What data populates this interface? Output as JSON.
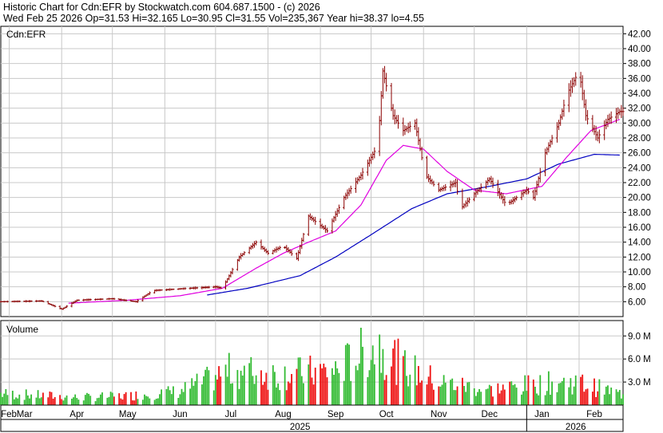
{
  "header": {
    "line1": "Historic Chart for Cdn:EFR by Stockwatch.com 604.687.1500 - (c) 2026",
    "line2": "Wed Feb 25 2026   Op=31.53   Hi=32.165   Lo=30.95   Cl=31.55   Vol=235,367   Year hi=38.37   lo=4.55"
  },
  "chart_data": [
    {
      "type": "ohlc",
      "title": "Cdn:EFR",
      "ylim": [
        4,
        43
      ],
      "y_ticks": [
        "6.00",
        "8.00",
        "10.00",
        "12.00",
        "14.00",
        "16.00",
        "18.00",
        "20.00",
        "22.00",
        "24.00",
        "26.00",
        "28.00",
        "30.00",
        "32.00",
        "34.00",
        "36.00",
        "38.00",
        "40.00",
        "42.00"
      ],
      "x_labels": [
        {
          "label": "Feb",
          "date": "2025-02-25"
        },
        {
          "label": "Mar",
          "date": "2025-03-10"
        },
        {
          "label": "Apr",
          "date": "2025-04-10"
        },
        {
          "label": "May",
          "date": "2025-05-10"
        },
        {
          "label": "Jun",
          "date": "2025-06-10"
        },
        {
          "label": "Jul",
          "date": "2025-07-10"
        },
        {
          "label": "Aug",
          "date": "2025-08-10"
        },
        {
          "label": "Sep",
          "date": "2025-09-10"
        },
        {
          "label": "Oct",
          "date": "2025-10-10"
        },
        {
          "label": "Nov",
          "date": "2025-11-10"
        },
        {
          "label": "Dec",
          "date": "2025-12-10"
        },
        {
          "label": "Jan",
          "date": "2026-01-10"
        },
        {
          "label": "Feb",
          "date": "2026-02-10"
        }
      ],
      "year_labels": [
        {
          "label": "2025",
          "date": "2025-08-20"
        },
        {
          "label": "2026",
          "date": "2026-01-30"
        }
      ],
      "year_divider_date": "2026-01-01",
      "x_range": [
        "2025-02-24",
        "2026-02-27"
      ],
      "price_path": [
        {
          "date": "2025-02-24",
          "close": 6.0
        },
        {
          "date": "2025-03-20",
          "close": 6.1
        },
        {
          "date": "2025-04-01",
          "close": 5.0
        },
        {
          "date": "2025-04-10",
          "close": 6.2
        },
        {
          "date": "2025-05-01",
          "close": 6.4
        },
        {
          "date": "2025-05-15",
          "close": 6.0
        },
        {
          "date": "2025-05-25",
          "close": 7.5
        },
        {
          "date": "2025-06-15",
          "close": 7.8
        },
        {
          "date": "2025-07-01",
          "close": 8.0
        },
        {
          "date": "2025-07-05",
          "close": 7.8
        },
        {
          "date": "2025-07-15",
          "close": 12.0
        },
        {
          "date": "2025-07-25",
          "close": 14.0
        },
        {
          "date": "2025-08-01",
          "close": 12.5
        },
        {
          "date": "2025-08-10",
          "close": 13.5
        },
        {
          "date": "2025-08-18",
          "close": 11.8
        },
        {
          "date": "2025-08-25",
          "close": 17.5
        },
        {
          "date": "2025-09-05",
          "close": 15.5
        },
        {
          "date": "2025-09-15",
          "close": 20.0
        },
        {
          "date": "2025-09-25",
          "close": 23.0
        },
        {
          "date": "2025-10-05",
          "close": 27.0
        },
        {
          "date": "2025-10-08",
          "close": 37.0
        },
        {
          "date": "2025-10-14",
          "close": 31.0
        },
        {
          "date": "2025-10-20",
          "close": 29.0
        },
        {
          "date": "2025-10-27",
          "close": 30.0
        },
        {
          "date": "2025-11-02",
          "close": 23.0
        },
        {
          "date": "2025-11-10",
          "close": 21.0
        },
        {
          "date": "2025-11-20",
          "close": 22.0
        },
        {
          "date": "2025-11-23",
          "close": 18.5
        },
        {
          "date": "2025-12-01",
          "close": 20.5
        },
        {
          "date": "2025-12-10",
          "close": 22.5
        },
        {
          "date": "2025-12-20",
          "close": 19.0
        },
        {
          "date": "2026-01-01",
          "close": 21.0
        },
        {
          "date": "2026-01-05",
          "close": 20.0
        },
        {
          "date": "2026-01-12",
          "close": 26.0
        },
        {
          "date": "2026-01-20",
          "close": 30.0
        },
        {
          "date": "2026-01-25",
          "close": 34.0
        },
        {
          "date": "2026-02-01",
          "close": 37.0
        },
        {
          "date": "2026-02-05",
          "close": 31.0
        },
        {
          "date": "2026-02-12",
          "close": 28.0
        },
        {
          "date": "2026-02-18",
          "close": 30.5
        },
        {
          "date": "2026-02-25",
          "close": 31.55
        }
      ],
      "ma_fast_path": [
        {
          "date": "2025-04-05",
          "value": 5.8
        },
        {
          "date": "2025-05-10",
          "value": 6.2
        },
        {
          "date": "2025-06-10",
          "value": 6.8
        },
        {
          "date": "2025-07-05",
          "value": 7.8
        },
        {
          "date": "2025-07-25",
          "value": 10.5
        },
        {
          "date": "2025-08-10",
          "value": 12.5
        },
        {
          "date": "2025-08-25",
          "value": 14.0
        },
        {
          "date": "2025-09-10",
          "value": 15.5
        },
        {
          "date": "2025-09-25",
          "value": 19.0
        },
        {
          "date": "2025-10-10",
          "value": 25.0
        },
        {
          "date": "2025-10-20",
          "value": 27.0
        },
        {
          "date": "2025-11-01",
          "value": 26.5
        },
        {
          "date": "2025-11-15",
          "value": 23.5
        },
        {
          "date": "2025-12-01",
          "value": 21.0
        },
        {
          "date": "2025-12-20",
          "value": 20.5
        },
        {
          "date": "2026-01-10",
          "value": 21.5
        },
        {
          "date": "2026-01-25",
          "value": 25.5
        },
        {
          "date": "2026-02-08",
          "value": 29.0
        },
        {
          "date": "2026-02-25",
          "value": 30.5
        }
      ],
      "ma_slow_path": [
        {
          "date": "2025-06-26",
          "value": 6.9
        },
        {
          "date": "2025-07-20",
          "value": 7.8
        },
        {
          "date": "2025-08-20",
          "value": 9.5
        },
        {
          "date": "2025-09-10",
          "value": 12.0
        },
        {
          "date": "2025-10-01",
          "value": 15.0
        },
        {
          "date": "2025-10-25",
          "value": 18.5
        },
        {
          "date": "2025-11-15",
          "value": 20.5
        },
        {
          "date": "2025-12-10",
          "value": 21.5
        },
        {
          "date": "2026-01-01",
          "value": 22.5
        },
        {
          "date": "2026-01-20",
          "value": 24.5
        },
        {
          "date": "2026-02-10",
          "value": 25.8
        },
        {
          "date": "2026-02-25",
          "value": 25.7
        }
      ],
      "colors": {
        "bar": "#8b0000",
        "ma_fast": "#e000e0",
        "ma_slow": "#0000c0",
        "grid": "#c8c8c8"
      }
    },
    {
      "type": "bar",
      "title": "Volume",
      "ylim": [
        0,
        11
      ],
      "y_ticks": [
        "3.0 M",
        "6.0 M",
        "9.0 M"
      ],
      "volume_path": [
        {
          "date": "2025-02-24",
          "value": 1.5
        },
        {
          "date": "2025-03-25",
          "value": 1.2
        },
        {
          "date": "2025-04-10",
          "value": 1.0
        },
        {
          "date": "2025-05-10",
          "value": 1.2
        },
        {
          "date": "2025-06-10",
          "value": 1.8
        },
        {
          "date": "2025-07-10",
          "value": 4.5
        },
        {
          "date": "2025-08-10",
          "value": 4.0
        },
        {
          "date": "2025-09-10",
          "value": 4.5
        },
        {
          "date": "2025-10-05",
          "value": 8.0
        },
        {
          "date": "2025-10-20",
          "value": 5.0
        },
        {
          "date": "2025-11-10",
          "value": 3.0
        },
        {
          "date": "2025-12-10",
          "value": 2.0
        },
        {
          "date": "2026-01-10",
          "value": 2.8
        },
        {
          "date": "2026-01-30",
          "value": 3.0
        },
        {
          "date": "2026-02-25",
          "value": 1.5
        }
      ],
      "colors": {
        "up": "#33bb33",
        "down": "#ee1111"
      }
    }
  ]
}
